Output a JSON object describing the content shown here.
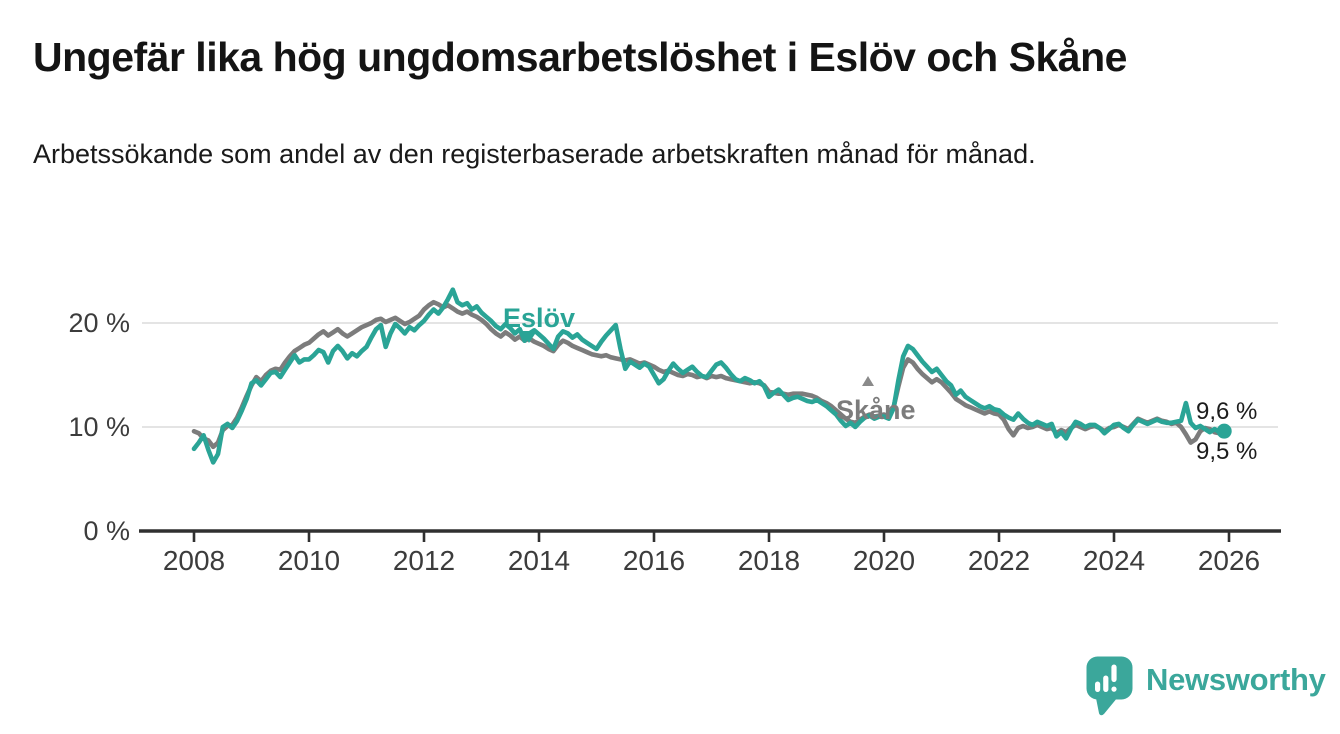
{
  "header": {
    "title": "Ungefär lika hög ungdomsarbetslöshet i Eslöv och Skåne",
    "subtitle": "Arbetssökande som andel av den registerbaserade arbetskraften månad för månad."
  },
  "colors": {
    "accent_teal": "#2AA496",
    "muted_gray": "#7C7C7C",
    "grid": "#DBDBDB",
    "axis": "#303030",
    "logo_teal": "#3BA79B"
  },
  "chart_data": {
    "type": "line",
    "title": "Ungefär lika hög ungdomsarbetslöshet i Eslöv och Skåne",
    "subtitle": "Arbetssökande som andel av den registerbaserade arbetskraften månad för månad.",
    "unit": "%",
    "frequency": "monthly",
    "x_start": "2008-01",
    "x_end": "2025-12",
    "x_ticks": [
      2008,
      2010,
      2012,
      2014,
      2016,
      2018,
      2020,
      2022,
      2024,
      2026
    ],
    "x_tick_labels": [
      "2008",
      "2010",
      "2012",
      "2014",
      "2016",
      "2018",
      "2020",
      "2022",
      "2024",
      "2026"
    ],
    "y_ticks": [
      0,
      10,
      20
    ],
    "y_tick_labels": [
      "0 %",
      "10 %",
      "20 %"
    ],
    "ylim": [
      0,
      24
    ],
    "grid": "horizontal",
    "legend_position": "inline-labels",
    "series": [
      {
        "name": "Skåne",
        "color": "#7C7C7C",
        "end_label": "9,5 %",
        "end_marker": false,
        "values": [
          9.6,
          9.4,
          8.9,
          8.7,
          8.1,
          8.5,
          9.7,
          10.1,
          10.2,
          10.9,
          11.9,
          13.0,
          14.0,
          14.8,
          14.4,
          15.0,
          15.4,
          15.6,
          15.5,
          16.2,
          16.8,
          17.3,
          17.6,
          17.9,
          18.1,
          18.5,
          18.9,
          19.2,
          18.8,
          19.1,
          19.4,
          19.0,
          18.7,
          19.0,
          19.3,
          19.6,
          19.8,
          20.0,
          20.3,
          20.4,
          20.1,
          20.3,
          20.5,
          20.2,
          19.9,
          20.1,
          20.4,
          20.7,
          21.3,
          21.7,
          22.0,
          21.8,
          21.5,
          21.7,
          21.4,
          21.1,
          20.9,
          21.1,
          20.8,
          20.6,
          20.3,
          19.9,
          19.4,
          19.0,
          18.7,
          19.1,
          18.8,
          18.4,
          18.7,
          18.3,
          18.5,
          18.2,
          18.0,
          17.8,
          17.5,
          17.3,
          17.9,
          18.3,
          18.1,
          17.8,
          17.6,
          17.4,
          17.2,
          17.0,
          16.9,
          16.8,
          16.9,
          16.7,
          16.6,
          16.5,
          16.4,
          16.5,
          16.3,
          16.1,
          16.2,
          16.0,
          15.8,
          15.5,
          15.3,
          15.4,
          15.2,
          15.0,
          14.9,
          15.1,
          15.0,
          14.8,
          14.9,
          14.7,
          14.9,
          14.8,
          14.9,
          14.7,
          14.6,
          14.5,
          14.4,
          14.3,
          14.2,
          14.3,
          14.2,
          14.0,
          13.4,
          13.3,
          13.2,
          13.2,
          13.1,
          13.2,
          13.2,
          13.2,
          13.1,
          13.0,
          12.8,
          12.5,
          12.3,
          12.0,
          11.6,
          11.2,
          10.8,
          10.5,
          10.4,
          10.7,
          11.0,
          11.2,
          11.0,
          11.1,
          11.2,
          11.0,
          11.9,
          13.9,
          15.7,
          16.5,
          16.2,
          15.6,
          15.1,
          14.7,
          14.3,
          14.6,
          14.3,
          13.8,
          13.3,
          12.7,
          12.4,
          12.1,
          11.9,
          11.7,
          11.5,
          11.3,
          11.5,
          11.3,
          11.2,
          10.7,
          9.8,
          9.2,
          9.9,
          10.1,
          9.9,
          10.0,
          10.2,
          10.0,
          9.8,
          9.9,
          9.4,
          9.7,
          9.5,
          9.9,
          10.2,
          10.0,
          9.8,
          10.0,
          10.1,
          9.9,
          9.6,
          9.9,
          10.0,
          10.2,
          10.0,
          9.8,
          10.3,
          10.8,
          10.6,
          10.4,
          10.6,
          10.8,
          10.6,
          10.5,
          10.3,
          10.4,
          10.0,
          9.3,
          8.5,
          8.8,
          9.6,
          9.9,
          9.8,
          9.5,
          9.4,
          9.5
        ]
      },
      {
        "name": "Eslöv",
        "color": "#2AA496",
        "end_label": "9,6 %",
        "end_marker": true,
        "values": [
          7.9,
          8.5,
          9.2,
          7.8,
          6.6,
          7.4,
          10.0,
          10.3,
          9.9,
          10.6,
          11.6,
          12.7,
          14.2,
          14.5,
          14.0,
          14.6,
          15.2,
          15.3,
          14.8,
          15.5,
          16.2,
          16.9,
          16.2,
          16.5,
          16.5,
          16.9,
          17.4,
          17.2,
          16.2,
          17.3,
          17.8,
          17.3,
          16.6,
          17.1,
          16.8,
          17.3,
          17.7,
          18.6,
          19.4,
          19.8,
          17.7,
          19.0,
          19.9,
          19.5,
          19.0,
          19.6,
          19.3,
          19.8,
          20.2,
          20.8,
          21.3,
          20.9,
          21.5,
          22.3,
          23.2,
          22.0,
          21.7,
          21.9,
          21.3,
          21.6,
          21.0,
          20.6,
          20.2,
          19.7,
          19.4,
          19.9,
          19.5,
          19.0,
          19.4,
          18.3,
          19.0,
          19.3,
          18.9,
          18.5,
          18.0,
          17.5,
          18.7,
          19.2,
          19.0,
          18.6,
          18.9,
          18.4,
          18.1,
          17.8,
          17.5,
          18.2,
          18.8,
          19.3,
          19.8,
          17.5,
          15.6,
          16.3,
          16.0,
          15.7,
          16.1,
          15.8,
          15.0,
          14.2,
          14.6,
          15.4,
          16.1,
          15.6,
          15.2,
          15.5,
          15.8,
          15.3,
          14.9,
          14.8,
          15.4,
          16.0,
          16.2,
          15.7,
          15.1,
          14.6,
          14.4,
          14.7,
          14.5,
          14.2,
          14.4,
          13.9,
          12.9,
          13.3,
          13.6,
          13.1,
          12.6,
          12.8,
          12.9,
          12.7,
          12.5,
          12.4,
          12.6,
          12.3,
          12.0,
          11.6,
          11.2,
          10.6,
          10.1,
          10.4,
          10.0,
          10.5,
          10.9,
          11.1,
          10.8,
          11.0,
          11.0,
          10.8,
          11.8,
          14.5,
          16.8,
          17.8,
          17.5,
          16.9,
          16.3,
          15.8,
          15.3,
          15.6,
          15.0,
          14.4,
          14.0,
          13.1,
          13.5,
          12.9,
          12.6,
          12.3,
          12.0,
          11.8,
          12.0,
          11.7,
          11.6,
          11.2,
          10.9,
          10.7,
          11.3,
          10.8,
          10.4,
          10.2,
          10.5,
          10.3,
          10.1,
          10.3,
          9.1,
          9.5,
          8.9,
          9.8,
          10.5,
          10.3,
          10.0,
          10.2,
          10.2,
          9.9,
          9.4,
          9.8,
          10.2,
          10.3,
          9.9,
          9.6,
          10.2,
          10.7,
          10.5,
          10.3,
          10.5,
          10.7,
          10.5,
          10.4,
          10.4,
          10.5,
          10.6,
          12.3,
          10.4,
          9.9,
          10.1,
          9.8,
          9.5,
          9.8,
          9.5,
          9.6
        ]
      }
    ],
    "annotations": {
      "eslov_label": "Eslöv",
      "skane_label": "Skåne"
    }
  },
  "logo": {
    "text": "Newsworthy",
    "icon": "speech-bubble-bar-chart"
  }
}
